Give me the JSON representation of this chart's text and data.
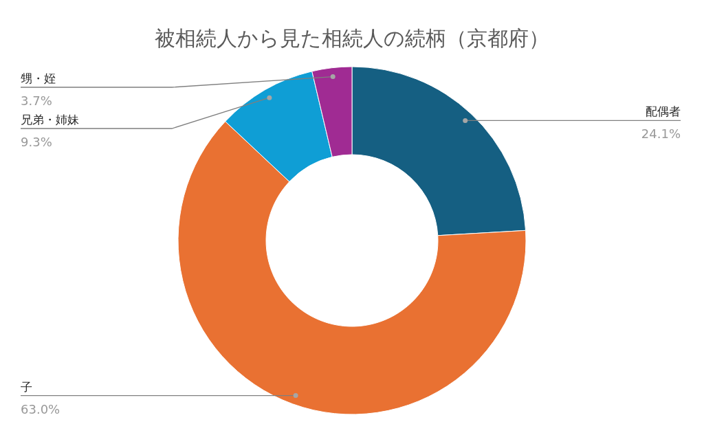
{
  "chart_data": {
    "type": "donut",
    "title": "被相続人から見た相続人の続柄（京都府）",
    "categories": [
      "配偶者",
      "子",
      "兄弟・姉妹",
      "甥・姪"
    ],
    "values": [
      24.1,
      63.0,
      9.3,
      3.7
    ],
    "colors": [
      "#155f82",
      "#e97132",
      "#0f9ed5",
      "#a02b93"
    ],
    "value_labels": [
      "24.1%",
      "63.0%",
      "9.3%",
      "3.7%"
    ]
  }
}
